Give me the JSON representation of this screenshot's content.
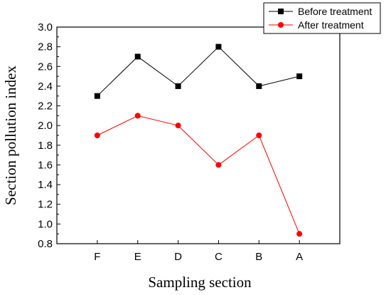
{
  "chart_data": {
    "type": "line",
    "categories": [
      "F",
      "E",
      "D",
      "C",
      "B",
      "A"
    ],
    "series": [
      {
        "name": "Before treatment",
        "values": [
          2.3,
          2.7,
          2.4,
          2.8,
          2.4,
          2.5
        ],
        "color": "#000000",
        "marker": "square"
      },
      {
        "name": "After treatment",
        "values": [
          1.9,
          2.1,
          2.0,
          1.6,
          1.9,
          0.9
        ],
        "color": "#ff0000",
        "marker": "circle"
      }
    ],
    "xlabel": "Sampling section",
    "ylabel": "Section pollution index",
    "ylim": [
      0.8,
      3.0
    ],
    "yticks": [
      "0.8",
      "1.0",
      "1.2",
      "1.4",
      "1.6",
      "1.8",
      "2.0",
      "2.2",
      "2.4",
      "2.6",
      "2.8",
      "3.0"
    ],
    "grid": false,
    "legend_position": "top-right"
  }
}
